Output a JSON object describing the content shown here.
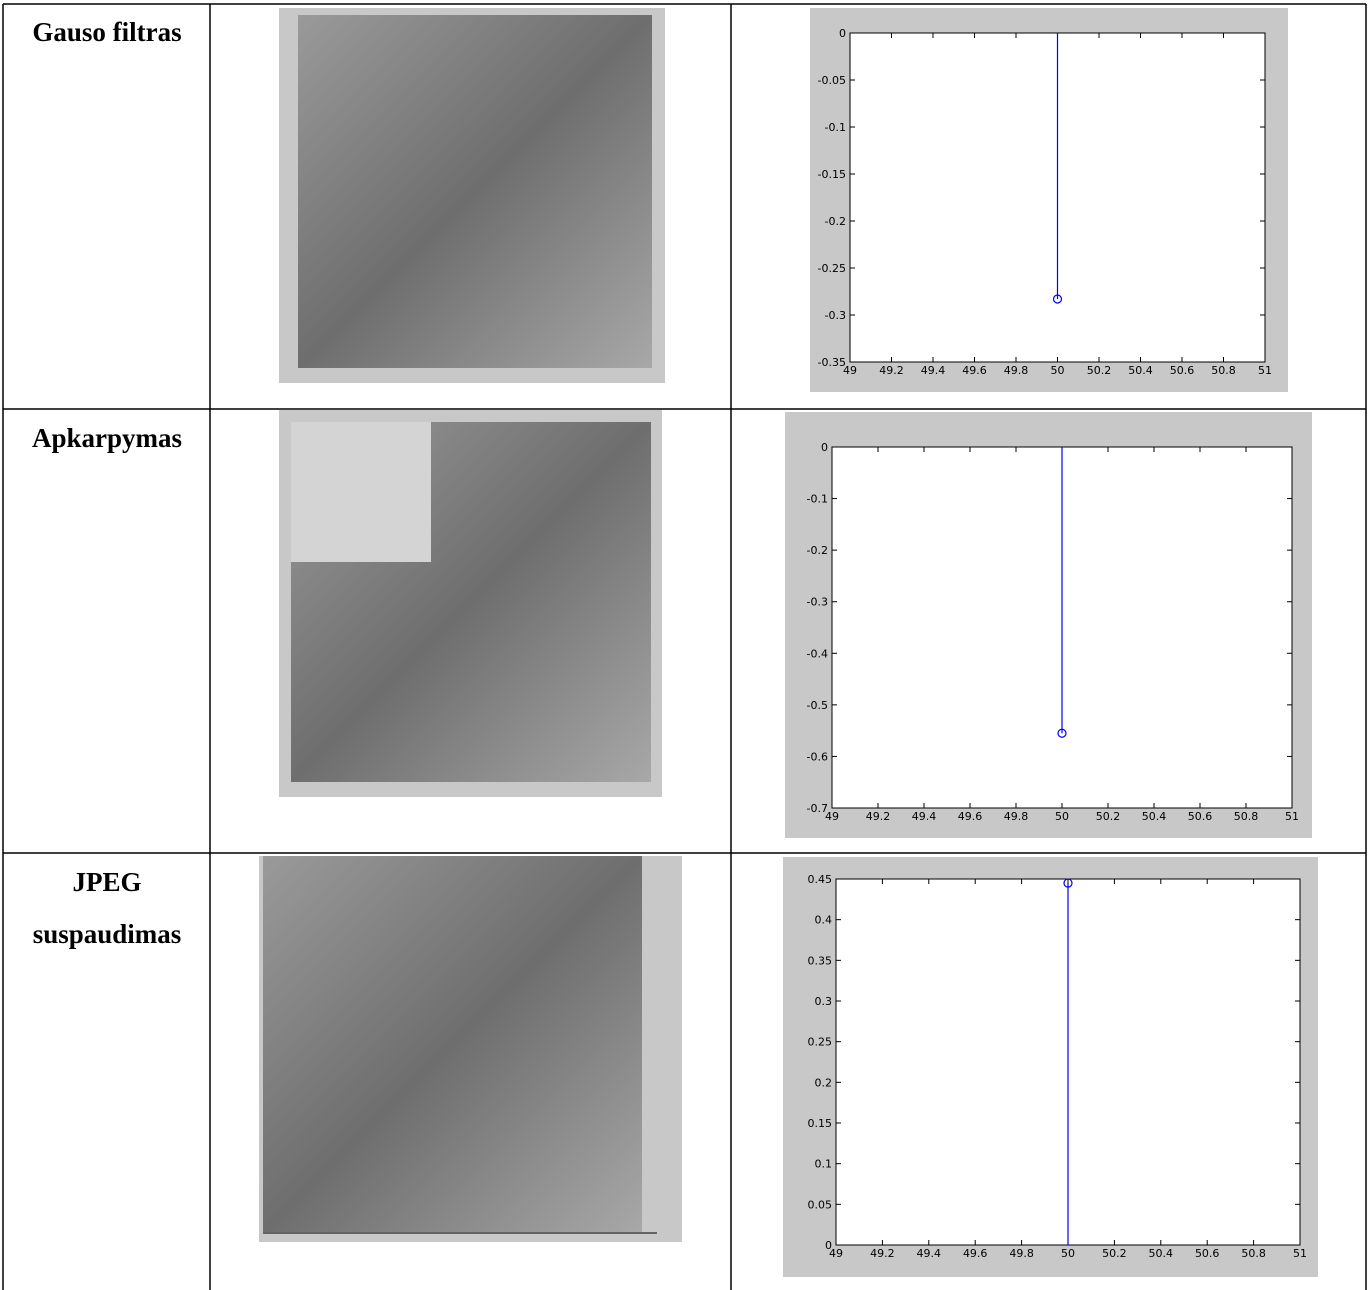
{
  "table": {
    "rows": [
      {
        "label": "Gauso filtras"
      },
      {
        "label": "Apkarpymas"
      },
      {
        "label": "JPEG suspaudimas"
      }
    ]
  },
  "chart_data": [
    {
      "type": "stem",
      "x": [
        50
      ],
      "values": [
        -0.283
      ],
      "color": "#0000ff",
      "xlim": [
        49,
        51
      ],
      "xticks": [
        49,
        49.2,
        49.4,
        49.6,
        49.8,
        50,
        50.2,
        50.4,
        50.6,
        50.8,
        51
      ],
      "ylim": [
        -0.35,
        0
      ],
      "yticks": [
        0,
        -0.05,
        -0.1,
        -0.15,
        -0.2,
        -0.25,
        -0.3,
        -0.35
      ]
    },
    {
      "type": "stem",
      "x": [
        50
      ],
      "values": [
        -0.555
      ],
      "color": "#0000ff",
      "xlim": [
        49,
        51
      ],
      "xticks": [
        49,
        49.2,
        49.4,
        49.6,
        49.8,
        50,
        50.2,
        50.4,
        50.6,
        50.8,
        51
      ],
      "ylim": [
        -0.7,
        0
      ],
      "yticks": [
        0,
        -0.1,
        -0.2,
        -0.3,
        -0.4,
        -0.5,
        -0.6,
        -0.7
      ]
    },
    {
      "type": "stem",
      "x": [
        50
      ],
      "values": [
        0.445
      ],
      "color": "#0000ff",
      "xlim": [
        49,
        51
      ],
      "xticks": [
        49,
        49.2,
        49.4,
        49.6,
        49.8,
        50,
        50.2,
        50.4,
        50.6,
        50.8,
        51
      ],
      "ylim": [
        0,
        0.45
      ],
      "yticks": [
        0,
        0.05,
        0.1,
        0.15,
        0.2,
        0.25,
        0.3,
        0.35,
        0.4,
        0.45
      ]
    }
  ]
}
